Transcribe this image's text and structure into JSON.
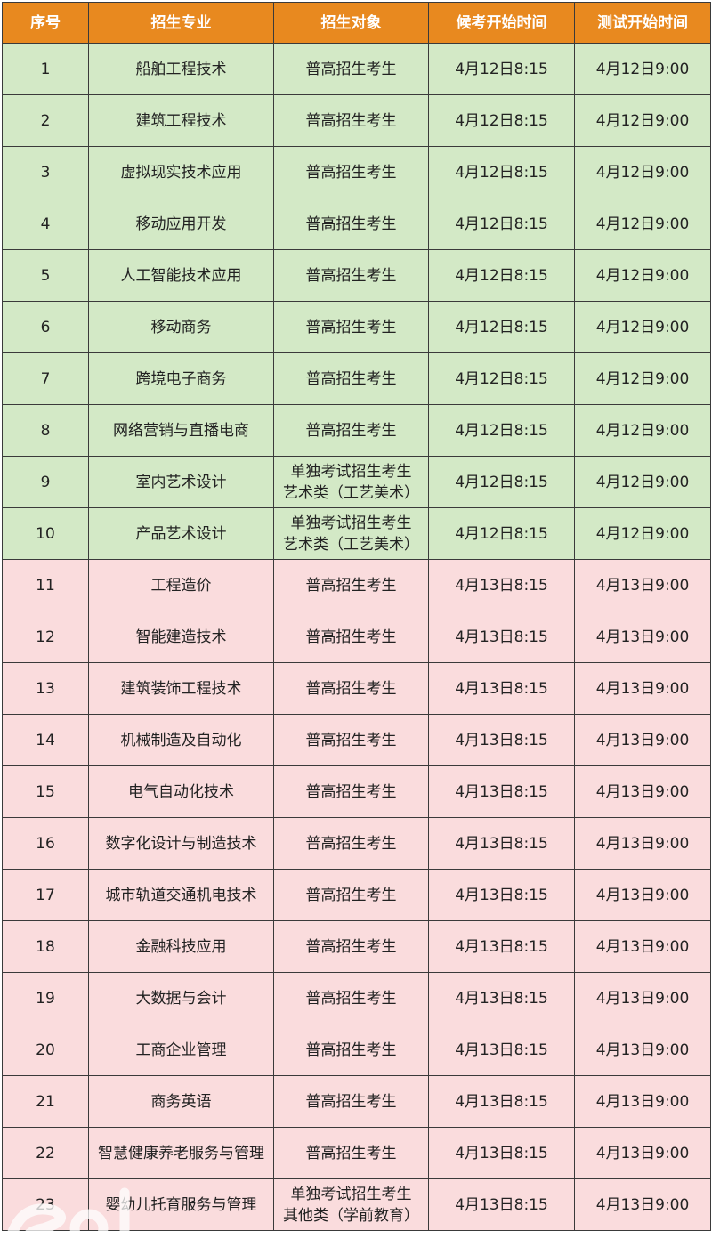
{
  "headers": [
    "序号",
    "招生专业",
    "招生对象",
    "候考开始时间",
    "测试开始时间"
  ],
  "rows": [
    {
      "no": "1",
      "major": "船舶工程技术",
      "target": "普高招生考生",
      "wait": "4月12日8:15",
      "test": "4月12日9:00",
      "day": "g"
    },
    {
      "no": "2",
      "major": "建筑工程技术",
      "target": "普高招生考生",
      "wait": "4月12日8:15",
      "test": "4月12日9:00",
      "day": "g"
    },
    {
      "no": "3",
      "major": "虚拟现实技术应用",
      "target": "普高招生考生",
      "wait": "4月12日8:15",
      "test": "4月12日9:00",
      "day": "g"
    },
    {
      "no": "4",
      "major": "移动应用开发",
      "target": "普高招生考生",
      "wait": "4月12日8:15",
      "test": "4月12日9:00",
      "day": "g"
    },
    {
      "no": "5",
      "major": "人工智能技术应用",
      "target": "普高招生考生",
      "wait": "4月12日8:15",
      "test": "4月12日9:00",
      "day": "g"
    },
    {
      "no": "6",
      "major": "移动商务",
      "target": "普高招生考生",
      "wait": "4月12日8:15",
      "test": "4月12日9:00",
      "day": "g"
    },
    {
      "no": "7",
      "major": "跨境电子商务",
      "target": "普高招生考生",
      "wait": "4月12日8:15",
      "test": "4月12日9:00",
      "day": "g"
    },
    {
      "no": "8",
      "major": "网络营销与直播电商",
      "target": "普高招生考生",
      "wait": "4月12日8:15",
      "test": "4月12日9:00",
      "day": "g"
    },
    {
      "no": "9",
      "major": "室内艺术设计",
      "target": "单独考试招生考生",
      "target2": "艺术类（工艺美术）",
      "wait": "4月12日8:15",
      "test": "4月12日9:00",
      "day": "g"
    },
    {
      "no": "10",
      "major": "产品艺术设计",
      "target": "单独考试招生考生",
      "target2": "艺术类（工艺美术）",
      "wait": "4月12日8:15",
      "test": "4月12日9:00",
      "day": "g"
    },
    {
      "no": "11",
      "major": "工程造价",
      "target": "普高招生考生",
      "wait": "4月13日8:15",
      "test": "4月13日9:00",
      "day": "p"
    },
    {
      "no": "12",
      "major": "智能建造技术",
      "target": "普高招生考生",
      "wait": "4月13日8:15",
      "test": "4月13日9:00",
      "day": "p"
    },
    {
      "no": "13",
      "major": "建筑装饰工程技术",
      "target": "普高招生考生",
      "wait": "4月13日8:15",
      "test": "4月13日9:00",
      "day": "p"
    },
    {
      "no": "14",
      "major": "机械制造及自动化",
      "target": "普高招生考生",
      "wait": "4月13日8:15",
      "test": "4月13日9:00",
      "day": "p"
    },
    {
      "no": "15",
      "major": "电气自动化技术",
      "target": "普高招生考生",
      "wait": "4月13日8:15",
      "test": "4月13日9:00",
      "day": "p"
    },
    {
      "no": "16",
      "major": "数字化设计与制造技术",
      "target": "普高招生考生",
      "wait": "4月13日8:15",
      "test": "4月13日9:00",
      "day": "p"
    },
    {
      "no": "17",
      "major": "城市轨道交通机电技术",
      "target": "普高招生考生",
      "wait": "4月13日8:15",
      "test": "4月13日9:00",
      "day": "p"
    },
    {
      "no": "18",
      "major": "金融科技应用",
      "target": "普高招生考生",
      "wait": "4月13日8:15",
      "test": "4月13日9:00",
      "day": "p"
    },
    {
      "no": "19",
      "major": "大数据与会计",
      "target": "普高招生考生",
      "wait": "4月13日8:15",
      "test": "4月13日9:00",
      "day": "p"
    },
    {
      "no": "20",
      "major": "工商企业管理",
      "target": "普高招生考生",
      "wait": "4月13日8:15",
      "test": "4月13日9:00",
      "day": "p"
    },
    {
      "no": "21",
      "major": "商务英语",
      "target": "普高招生考生",
      "wait": "4月13日8:15",
      "test": "4月13日9:00",
      "day": "p"
    },
    {
      "no": "22",
      "major": "智慧健康养老服务与管理",
      "target": "普高招生考生",
      "wait": "4月13日8:15",
      "test": "4月13日9:00",
      "day": "p"
    },
    {
      "no": "23",
      "major": "婴幼儿托育服务与管理",
      "target": "单独考试招生考生",
      "target2": "其他类（学前教育）",
      "wait": "4月13日8:15",
      "test": "4月13日9:00",
      "day": "p"
    }
  ],
  "colors": {
    "header": "#e8891f",
    "day1": "#d3e9c6",
    "day2": "#fadcdd"
  },
  "watermark": "eol"
}
